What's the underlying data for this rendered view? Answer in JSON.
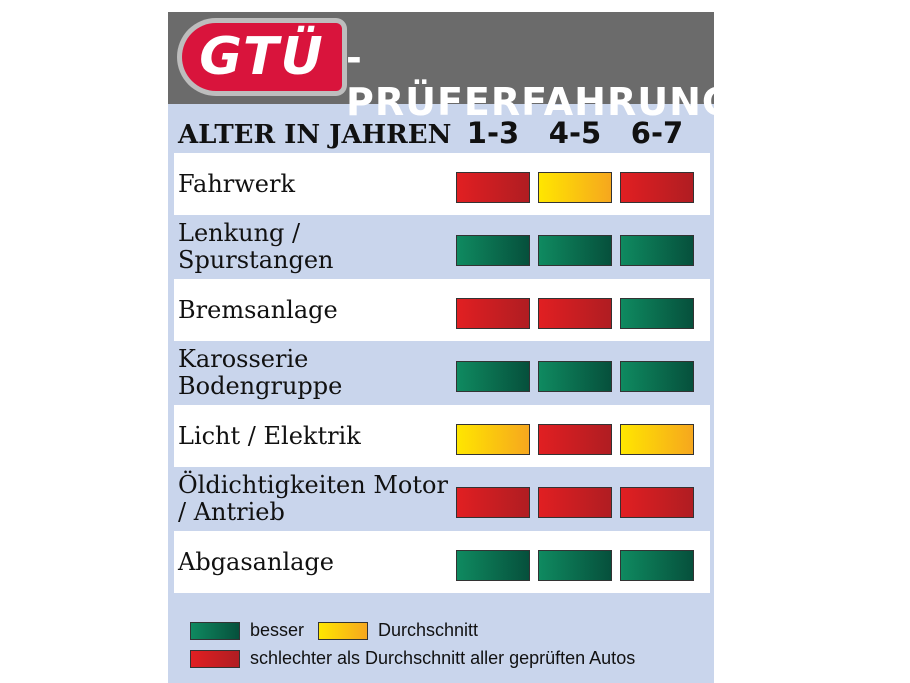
{
  "header": {
    "logo_text": "GTÜ",
    "title": "-PRÜFERFAHRUNG"
  },
  "columns": {
    "label": "ALTER IN JAHREN",
    "ages": [
      "1-3",
      "4-5",
      "6-7"
    ]
  },
  "rows": [
    {
      "label": "Fahrwerk",
      "ratings": [
        "red",
        "yellow",
        "red"
      ]
    },
    {
      "label": "Lenkung / Spurstangen",
      "ratings": [
        "green",
        "green",
        "green"
      ]
    },
    {
      "label": "Bremsanlage",
      "ratings": [
        "red",
        "red",
        "green"
      ]
    },
    {
      "label": "Karosserie Bodengruppe",
      "ratings": [
        "green",
        "green",
        "green"
      ]
    },
    {
      "label": "Licht / Elektrik",
      "ratings": [
        "yellow",
        "red",
        "yellow"
      ]
    },
    {
      "label": "Öldichtigkeiten Motor / Antrieb",
      "ratings": [
        "red",
        "red",
        "red"
      ]
    },
    {
      "label": "Abgasanlage",
      "ratings": [
        "green",
        "green",
        "green"
      ]
    }
  ],
  "legend": {
    "green": "besser",
    "yellow": "Durchschnitt",
    "red": "schlechter als Durchschnitt aller geprüften Autos"
  },
  "colors": {
    "green": "#0b6f4f",
    "yellow": "#fbd000",
    "red": "#c81e24",
    "header": "#6b6b6b",
    "panel": "#c9d5ec"
  }
}
